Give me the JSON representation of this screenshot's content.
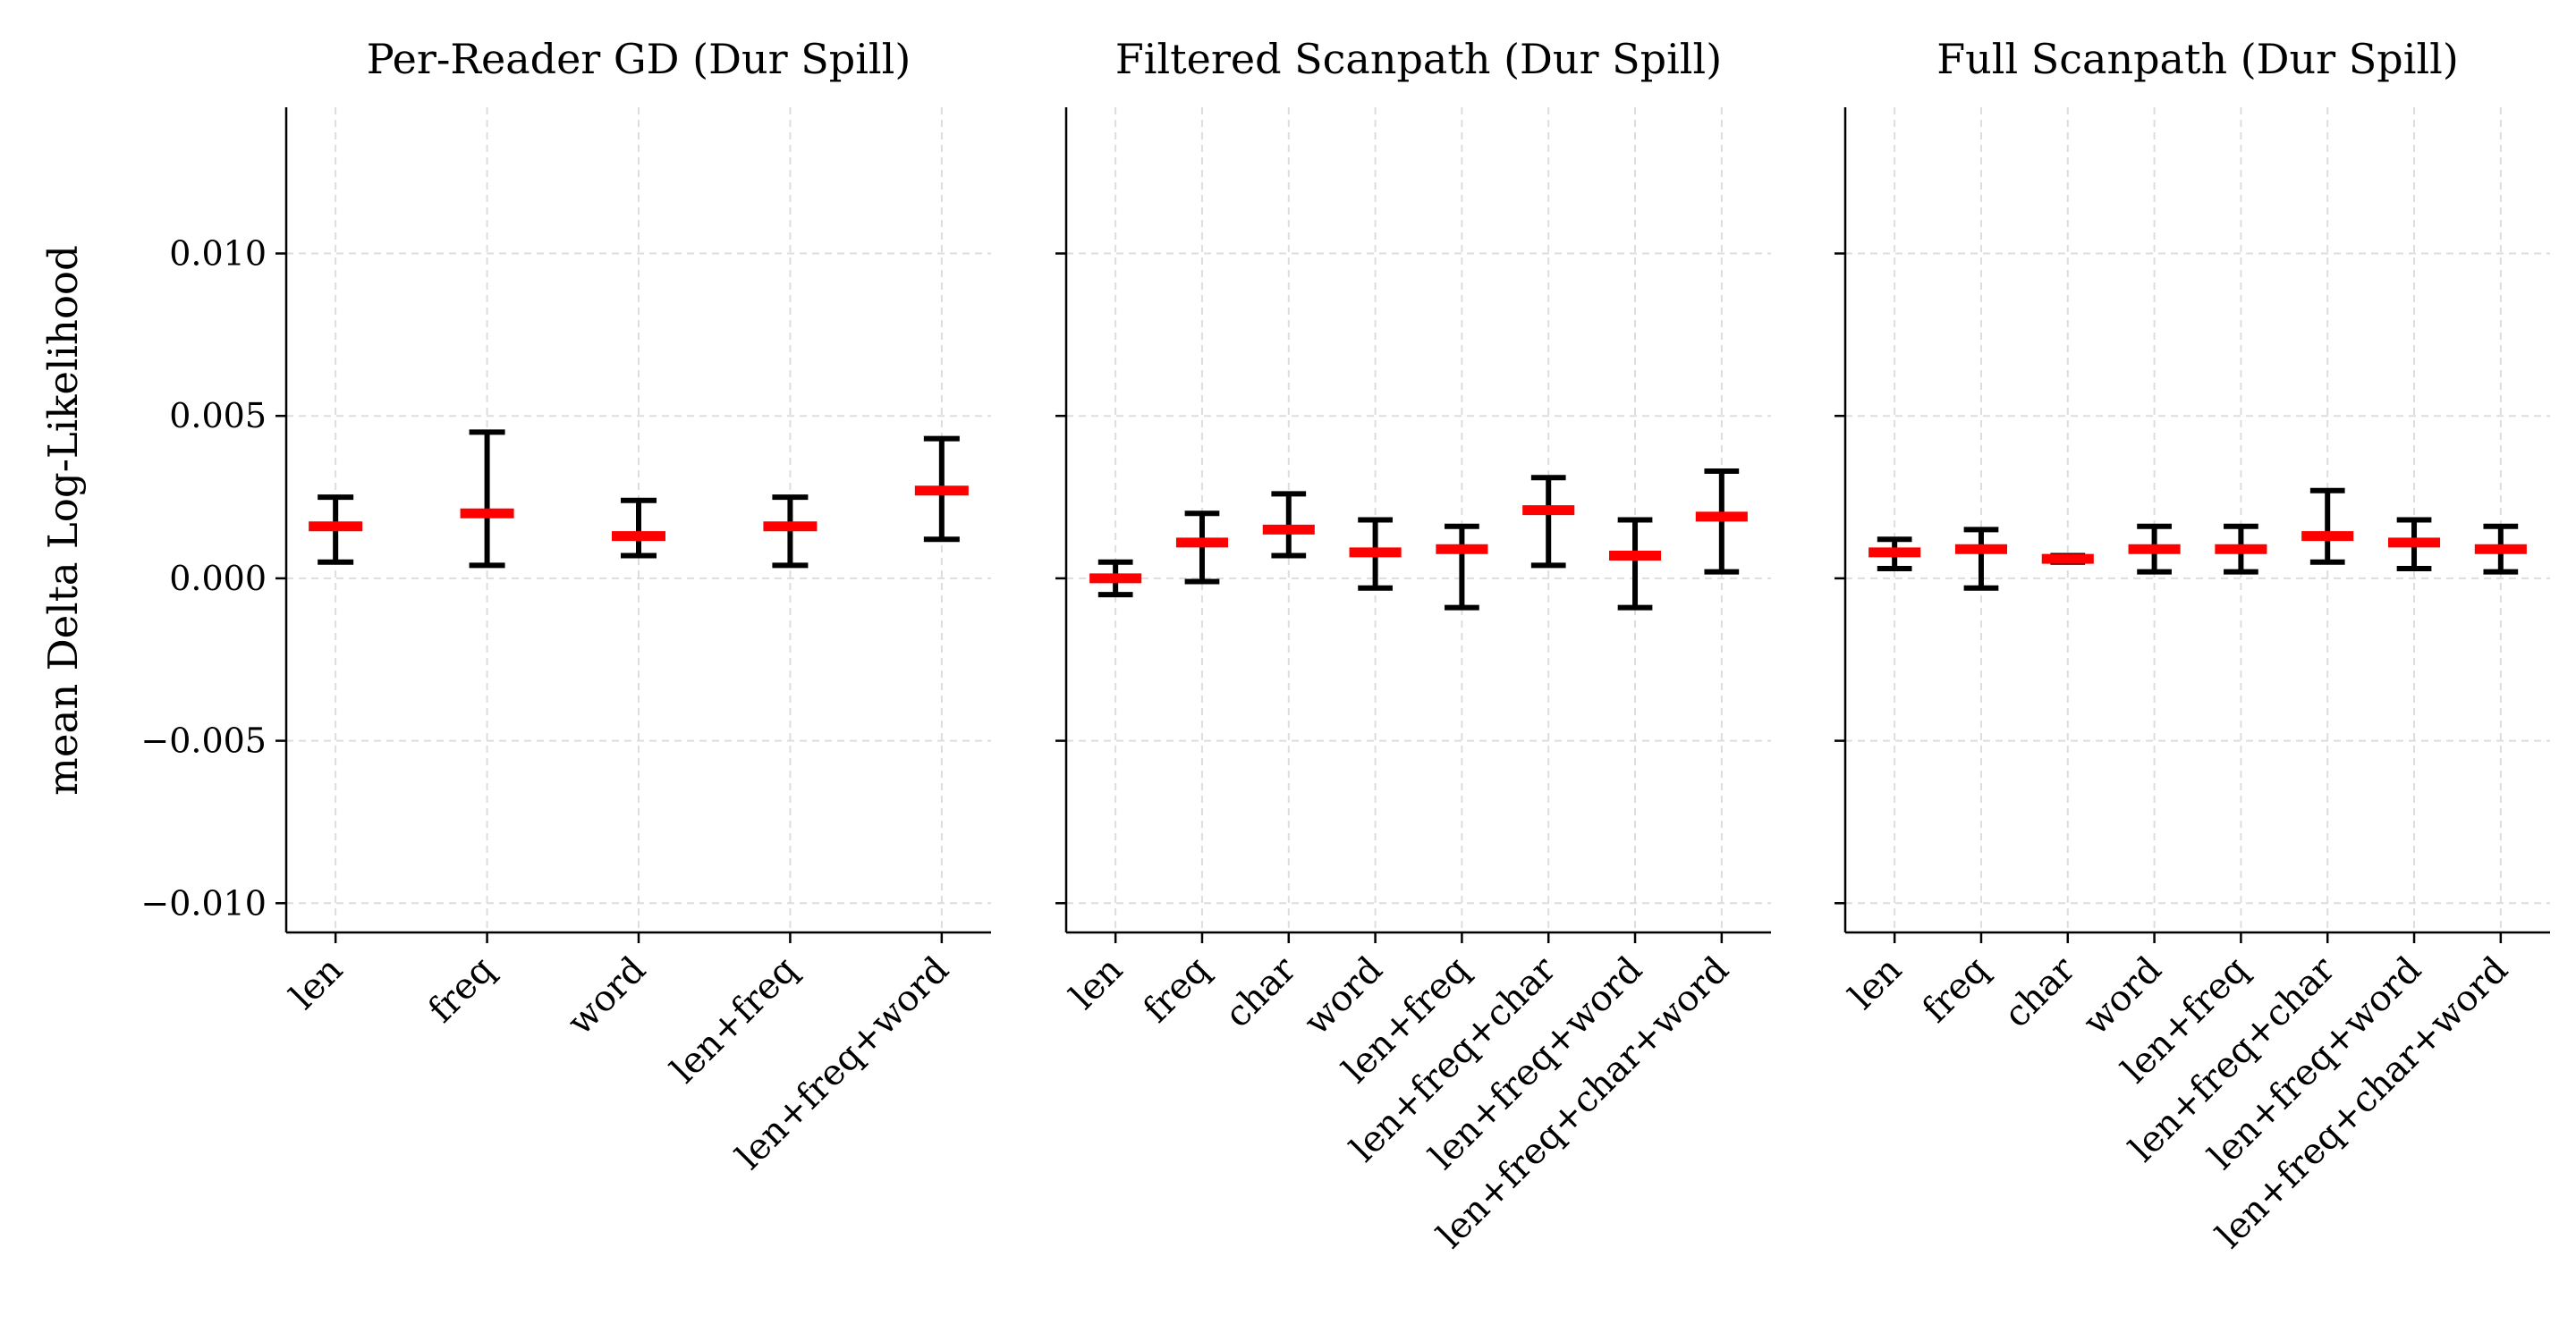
{
  "figure": {
    "ylabel": "mean Delta Log-Likelihood",
    "y_ticks": [
      0.01,
      0.005,
      0.0,
      -0.005,
      -0.01
    ],
    "y_tick_labels": [
      "0.010",
      "0.005",
      "0.000",
      "−0.005",
      "−0.010"
    ],
    "ylim": [
      -0.0109,
      0.0145
    ],
    "grid": true,
    "errorbar_color": "#000000",
    "mean_color": "#ff0000",
    "grid_color": "#dddddd"
  },
  "chart_data": [
    {
      "type": "errorbar",
      "title": "Per-Reader GD (Dur Spill)",
      "categories": [
        "len",
        "freq",
        "word",
        "len+freq",
        "len+freq+word"
      ],
      "mean": [
        0.0016,
        0.002,
        0.0013,
        0.0016,
        0.0027
      ],
      "lower": [
        0.0005,
        0.0004,
        0.0007,
        0.0004,
        0.0012
      ],
      "upper": [
        0.0025,
        0.0045,
        0.0024,
        0.0025,
        0.0043
      ]
    },
    {
      "type": "errorbar",
      "title": "Filtered Scanpath (Dur Spill)",
      "categories": [
        "len",
        "freq",
        "char",
        "word",
        "len+freq",
        "len+freq+char",
        "len+freq+word",
        "len+freq+char+word"
      ],
      "mean": [
        0.0,
        0.0011,
        0.0015,
        0.0008,
        0.0009,
        0.0021,
        0.0007,
        0.0019
      ],
      "lower": [
        -0.0005,
        -0.0001,
        0.0007,
        -0.0003,
        -0.0009,
        0.0004,
        -0.0009,
        0.0002
      ],
      "upper": [
        0.0005,
        0.002,
        0.0026,
        0.0018,
        0.0016,
        0.0031,
        0.0018,
        0.0033
      ]
    },
    {
      "type": "errorbar",
      "title": "Full Scanpath (Dur Spill)",
      "categories": [
        "len",
        "freq",
        "char",
        "word",
        "len+freq",
        "len+freq+char",
        "len+freq+word",
        "len+freq+char+word"
      ],
      "mean": [
        0.0008,
        0.0009,
        0.0006,
        0.0009,
        0.0009,
        0.0013,
        0.0011,
        0.0009
      ],
      "lower": [
        0.0003,
        -0.0003,
        0.0005,
        0.0002,
        0.0002,
        0.0005,
        0.0003,
        0.0002
      ],
      "upper": [
        0.0012,
        0.0015,
        0.0007,
        0.0016,
        0.0016,
        0.0027,
        0.0018,
        0.0016
      ]
    }
  ]
}
